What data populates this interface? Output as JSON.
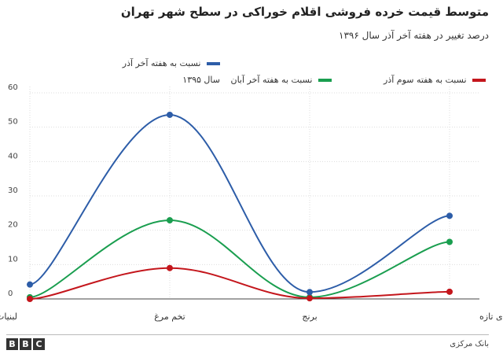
{
  "chart_data": {
    "type": "line",
    "title": "متوسط قیمت خرده فروشی اقلام خوراکی در سطح شهر تهران",
    "subtitle": "درصد تغییر در هفته آخر آذر سال ۱۳۹۶",
    "categories": [
      "لبنیات",
      "تخم مرغ",
      "برنج",
      "میوه‌های تازه"
    ],
    "series": [
      {
        "name": "نسبت به هفته آخر آذر سال ۱۳۹۵",
        "color": "#2d5da8",
        "values": [
          4.2,
          53.6,
          2.0,
          24.2
        ]
      },
      {
        "name": "نسبت به هفته آخر آبان",
        "color": "#1a9e4f",
        "values": [
          0.5,
          22.9,
          0.5,
          16.6
        ]
      },
      {
        "name": "نسبت به هفته سوم آذر",
        "color": "#c4161c",
        "values": [
          0.0,
          9.0,
          0.2,
          2.1
        ]
      }
    ],
    "ylim": [
      0,
      60
    ],
    "yticks": [
      0,
      10,
      20,
      30,
      40,
      50,
      60
    ],
    "grid": true,
    "legend_position": "top"
  },
  "legend_lines": {
    "series0_line1": "نسبت به هفته آخر آذر",
    "series0_line2": "سال ۱۳۹۵"
  },
  "footer": {
    "logo": [
      "B",
      "B",
      "C"
    ],
    "source": "بانک مرکزی"
  }
}
